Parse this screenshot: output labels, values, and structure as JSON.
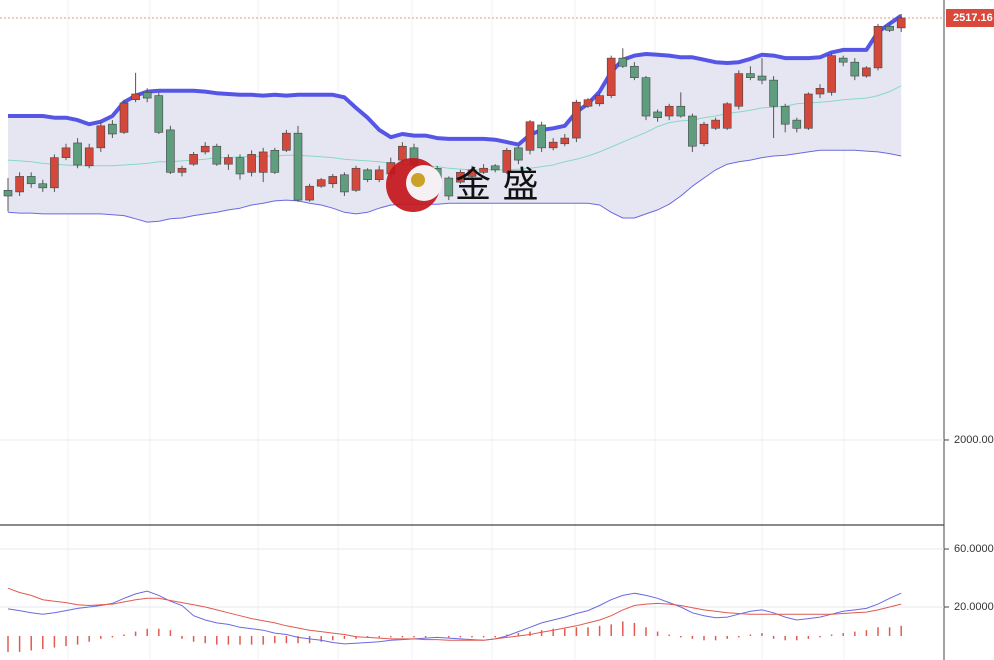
{
  "chart_data": [
    {
      "type": "candlestick",
      "open": [
        2306,
        2304,
        2323,
        2314,
        2309,
        2346,
        2364,
        2336,
        2358,
        2387,
        2377,
        2417,
        2426,
        2422,
        2380,
        2328,
        2338,
        2353,
        2360,
        2338,
        2346,
        2328,
        2328,
        2355,
        2355,
        2376,
        2294,
        2311,
        2314,
        2325,
        2306,
        2331,
        2319,
        2326,
        2343,
        2358,
        2321,
        2333,
        2321,
        2316,
        2323,
        2328,
        2336,
        2328,
        2358,
        2355,
        2386,
        2358,
        2363,
        2370,
        2409,
        2412,
        2422,
        2468,
        2458,
        2444,
        2402,
        2397,
        2409,
        2397,
        2363,
        2382,
        2382,
        2409,
        2449,
        2446,
        2441,
        2409,
        2392,
        2382,
        2424,
        2426,
        2468,
        2463,
        2446,
        2456,
        2507,
        2505
      ],
      "close": [
        2299,
        2323,
        2314,
        2309,
        2346,
        2358,
        2337,
        2358,
        2385,
        2375,
        2413,
        2424,
        2419,
        2377,
        2328,
        2333,
        2350,
        2360,
        2338,
        2346,
        2326,
        2350,
        2353,
        2328,
        2376,
        2294,
        2311,
        2319,
        2323,
        2304,
        2333,
        2319,
        2331,
        2340,
        2360,
        2337,
        2333,
        2319,
        2299,
        2328,
        2331,
        2333,
        2331,
        2355,
        2343,
        2390,
        2358,
        2365,
        2370,
        2414,
        2417,
        2422,
        2468,
        2458,
        2444,
        2397,
        2395,
        2409,
        2397,
        2360,
        2387,
        2392,
        2412,
        2449,
        2444,
        2441,
        2409,
        2387,
        2382,
        2424,
        2431,
        2471,
        2463,
        2446,
        2456,
        2507,
        2502,
        2517.16
      ],
      "high": [
        2321,
        2328,
        2328,
        2319,
        2350,
        2363,
        2370,
        2363,
        2390,
        2392,
        2417,
        2450,
        2431,
        2426,
        2385,
        2336,
        2353,
        2365,
        2363,
        2350,
        2350,
        2355,
        2358,
        2358,
        2380,
        2385,
        2314,
        2321,
        2326,
        2328,
        2336,
        2333,
        2336,
        2346,
        2365,
        2363,
        2336,
        2336,
        2323,
        2331,
        2336,
        2338,
        2338,
        2358,
        2360,
        2392,
        2390,
        2370,
        2375,
        2417,
        2419,
        2426,
        2471,
        2480,
        2463,
        2446,
        2405,
        2412,
        2426,
        2400,
        2390,
        2395,
        2414,
        2453,
        2458,
        2468,
        2446,
        2412,
        2395,
        2426,
        2436,
        2475,
        2471,
        2468,
        2458,
        2510,
        2512,
        2522
      ],
      "low": [
        2280,
        2299,
        2309,
        2304,
        2304,
        2343,
        2333,
        2333,
        2353,
        2370,
        2375,
        2414,
        2414,
        2375,
        2326,
        2323,
        2336,
        2350,
        2336,
        2331,
        2319,
        2323,
        2316,
        2326,
        2353,
        2292,
        2292,
        2309,
        2309,
        2299,
        2304,
        2316,
        2316,
        2321,
        2338,
        2333,
        2316,
        2314,
        2294,
        2314,
        2321,
        2326,
        2328,
        2326,
        2338,
        2350,
        2353,
        2355,
        2360,
        2365,
        2407,
        2409,
        2419,
        2456,
        2441,
        2392,
        2390,
        2392,
        2395,
        2353,
        2360,
        2380,
        2380,
        2405,
        2441,
        2436,
        2370,
        2377,
        2377,
        2380,
        2419,
        2422,
        2458,
        2441,
        2444,
        2453,
        2500,
        2500
      ],
      "up_color": "#d4483b",
      "down_color": "#5e9e7e",
      "band_fill": "#e6e6f3",
      "series": [
        {
          "color": "#5656e6",
          "values": [
            2397,
            2397,
            2397,
            2397,
            2395,
            2395,
            2392,
            2387,
            2390,
            2397,
            2414,
            2422,
            2427,
            2428,
            2428,
            2428,
            2428,
            2427,
            2425,
            2424,
            2423,
            2423,
            2422,
            2423,
            2422,
            2423,
            2423,
            2423,
            2423,
            2420,
            2407,
            2395,
            2380,
            2371,
            2375,
            2373,
            2373,
            2370,
            2369,
            2369,
            2369,
            2369,
            2368,
            2365,
            2362,
            2374,
            2380,
            2382,
            2385,
            2402,
            2412,
            2427,
            2451,
            2466,
            2471,
            2473,
            2472,
            2471,
            2469,
            2469,
            2466,
            2463,
            2462,
            2463,
            2467,
            2472,
            2471,
            2468,
            2468,
            2468,
            2469,
            2475,
            2478,
            2478,
            2478,
            2500,
            2510,
            2520
          ]
        },
        {
          "color": "#86d8c6",
          "values": [
            2343,
            2342,
            2341,
            2339,
            2338,
            2337,
            2336,
            2336,
            2336,
            2336,
            2337,
            2338,
            2339,
            2341,
            2341,
            2342,
            2343,
            2344,
            2346,
            2346,
            2347,
            2347,
            2348,
            2348,
            2349,
            2349,
            2348,
            2347,
            2346,
            2344,
            2343,
            2342,
            2341,
            2339,
            2338,
            2337,
            2336,
            2335,
            2333,
            2332,
            2331,
            2331,
            2331,
            2331,
            2332,
            2333,
            2335,
            2337,
            2341,
            2344,
            2348,
            2353,
            2359,
            2365,
            2371,
            2377,
            2384,
            2389,
            2391,
            2392,
            2395,
            2397,
            2400,
            2402,
            2404,
            2407,
            2408,
            2409,
            2412,
            2413,
            2414,
            2415,
            2417,
            2418,
            2419,
            2422,
            2427,
            2434
          ]
        },
        {
          "color": "#6a6ae0",
          "values": [
            2279,
            2278,
            2278,
            2277,
            2277,
            2277,
            2277,
            2277,
            2277,
            2276,
            2275,
            2271,
            2267,
            2268,
            2271,
            2272,
            2275,
            2277,
            2279,
            2282,
            2284,
            2288,
            2290,
            2293,
            2294,
            2293,
            2290,
            2288,
            2284,
            2279,
            2277,
            2279,
            2284,
            2288,
            2289,
            2289,
            2289,
            2289,
            2290,
            2290,
            2290,
            2290,
            2290,
            2290,
            2290,
            2290,
            2290,
            2290,
            2290,
            2290,
            2290,
            2288,
            2279,
            2272,
            2272,
            2277,
            2282,
            2289,
            2299,
            2311,
            2321,
            2331,
            2338,
            2341,
            2343,
            2346,
            2348,
            2349,
            2351,
            2353,
            2355,
            2355,
            2355,
            2355,
            2354,
            2353,
            2351,
            2348
          ]
        }
      ],
      "ylim": [
        1895.8,
        2539.2
      ],
      "yticks": [
        {
          "value": 2000,
          "label": "2000.00"
        }
      ],
      "last_price": 2517.16,
      "watermark": "金 盛"
    },
    {
      "type": "macd",
      "series": [
        {
          "color": "#6a6ae0",
          "values": [
            18.7,
            17.5,
            16,
            15,
            16,
            17.5,
            19,
            20,
            21,
            22.5,
            26,
            29,
            31,
            28,
            24,
            21,
            14,
            11,
            9,
            8,
            6,
            5,
            4,
            2,
            1,
            -1,
            -2,
            -3,
            -4.5,
            -5.5,
            -5,
            -4.5,
            -4,
            -3,
            -2.5,
            -2,
            -1.5,
            -1,
            -1.5,
            -2,
            -2.5,
            -3,
            -2,
            0,
            3,
            6,
            9,
            11,
            13,
            15.5,
            17.5,
            21,
            25,
            28,
            29.5,
            28,
            26,
            23,
            20,
            16,
            14,
            12.5,
            13,
            15,
            17,
            18,
            16,
            13,
            11,
            12,
            13,
            15,
            17,
            18,
            19,
            22,
            26,
            29.5
          ]
        },
        {
          "color": "#e05a50",
          "values": [
            33,
            30,
            28,
            25,
            24,
            23,
            21.5,
            21,
            21.5,
            22,
            23.5,
            25,
            26,
            26,
            24.5,
            23,
            21.5,
            20,
            18,
            16,
            14,
            12,
            10.5,
            9,
            7,
            5.5,
            4,
            3,
            2,
            1,
            -0.5,
            -1,
            -1.5,
            -2,
            -2,
            -2,
            -2.5,
            -2.5,
            -3,
            -3,
            -3,
            -3,
            -2,
            -1,
            0,
            1,
            2.5,
            4,
            5.5,
            7,
            9,
            11,
            14,
            18,
            21,
            22,
            22.5,
            22,
            21,
            19.5,
            18,
            17,
            16,
            15.5,
            15,
            15,
            15,
            15,
            15,
            15,
            15,
            15,
            15.5,
            16,
            16.5,
            18,
            20,
            22
          ]
        }
      ],
      "histogram": {
        "color": "#e05a50",
        "values": [
          -11,
          -11,
          -10,
          -9,
          -8,
          -7,
          -6,
          -4,
          -2,
          -1,
          1,
          3,
          5,
          5,
          4,
          -2,
          -4,
          -5,
          -6,
          -6,
          -6,
          -6,
          -6,
          -5,
          -5,
          -5,
          -5,
          -4,
          -3,
          -2,
          -2,
          -1,
          -1,
          -1,
          -1,
          -1,
          -1,
          0,
          -1,
          -1,
          -1,
          -1,
          -1,
          1,
          2,
          3,
          4,
          5,
          5,
          6,
          6,
          7,
          8,
          10,
          9,
          6,
          3,
          1,
          -1,
          -2,
          -3,
          -3,
          -2,
          -1,
          1,
          2,
          -2,
          -3,
          -3,
          -2,
          -1,
          1,
          2,
          3,
          4,
          6,
          6,
          7
        ]
      },
      "ylim": [
        -16.6,
        76.6
      ],
      "yticks": [
        {
          "value": 20,
          "label": "20.0000"
        },
        {
          "value": 60,
          "label": "60.0000"
        }
      ]
    }
  ]
}
